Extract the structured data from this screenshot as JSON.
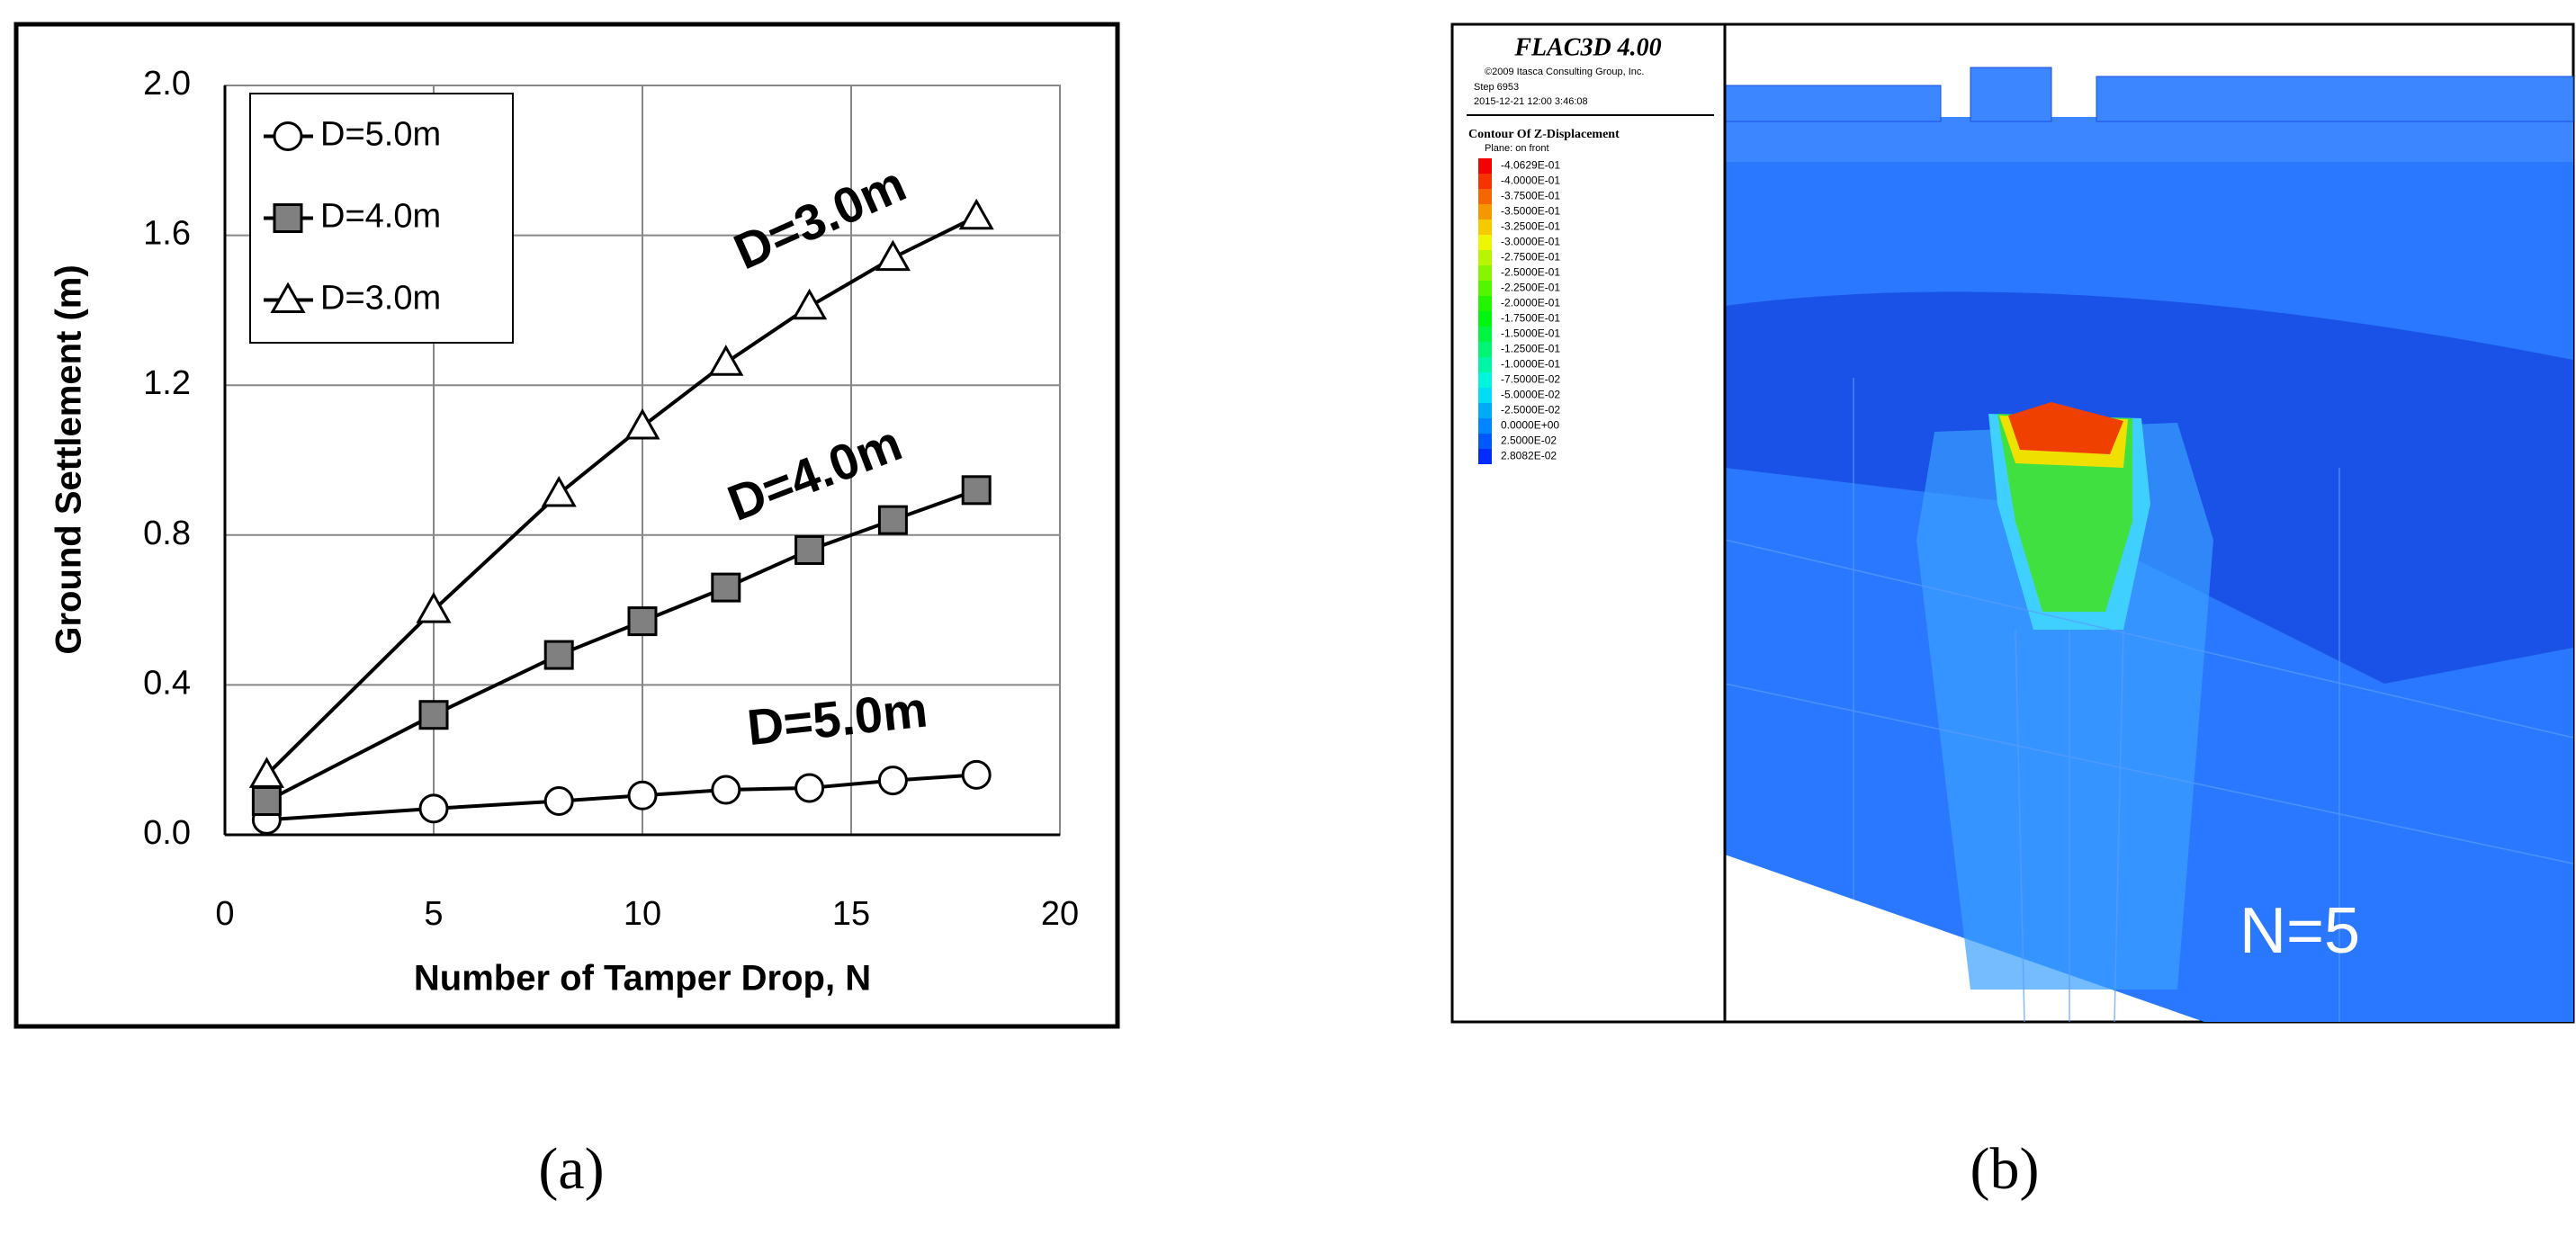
{
  "chart_data": {
    "type": "line",
    "xlabel": "Number of Tamper Drop, N",
    "ylabel": "Ground Settlement (m)",
    "x": [
      1,
      5,
      8,
      10,
      12,
      14,
      16,
      18
    ],
    "series": [
      {
        "name": "D=5.0m",
        "color": "#000000",
        "marker": "circle",
        "marker_fill": "#ffffff",
        "values": [
          0.04,
          0.07,
          0.09,
          0.105,
          0.12,
          0.125,
          0.145,
          0.16
        ]
      },
      {
        "name": "D=4.0m",
        "color": "#000000",
        "marker": "square",
        "marker_fill": "#808080",
        "values": [
          0.09,
          0.32,
          0.48,
          0.57,
          0.66,
          0.76,
          0.84,
          0.92
        ]
      },
      {
        "name": "D=3.0m",
        "color": "#000000",
        "marker": "triangle",
        "marker_fill": "#ffffff",
        "values": [
          0.16,
          0.6,
          0.91,
          1.09,
          1.26,
          1.41,
          1.54,
          1.65
        ]
      }
    ],
    "annotations": [
      "D=5.0m",
      "D=4.0m",
      "D=3.0m"
    ],
    "xlim": [
      0,
      20
    ],
    "xticks": [
      0,
      5,
      10,
      15,
      20
    ],
    "ylim": [
      0,
      2
    ],
    "yticks": [
      {
        "value": 0,
        "label": "0.0"
      },
      {
        "value": 0.4,
        "label": "0.4"
      },
      {
        "value": 0.8,
        "label": "0.8"
      },
      {
        "value": 1.2,
        "label": "1.2"
      },
      {
        "value": 1.6,
        "label": "1.6"
      },
      {
        "value": 2,
        "label": "2.0"
      }
    ],
    "grid": true,
    "legend": "upper left"
  },
  "panel_labels": [
    "(a)",
    "(b)"
  ],
  "simulation": {
    "title": "FLAC3D 4.00",
    "info": [
      "©2009 Itasca Consulting Group, Inc.",
      "Step 6953",
      "2015-12-21 12:00 3:46:08"
    ],
    "contour_title": "Contour Of Z-Displacement",
    "plane": "Plane: on front",
    "contour_values": [
      "-4.0629E-01",
      "-4.0000E-01",
      "-3.7500E-01",
      "-3.5000E-01",
      "-3.2500E-01",
      "-3.0000E-01",
      "-2.7500E-01",
      "-2.5000E-01",
      "-2.2500E-01",
      "-2.0000E-01",
      "-1.7500E-01",
      "-1.5000E-01",
      "-1.2500E-01",
      "-1.0000E-01",
      "-7.5000E-02",
      "-5.0000E-02",
      "-2.5000E-02",
      "0.0000E+00",
      "2.5000E-02",
      "2.8082E-02"
    ],
    "label": "N=5"
  }
}
